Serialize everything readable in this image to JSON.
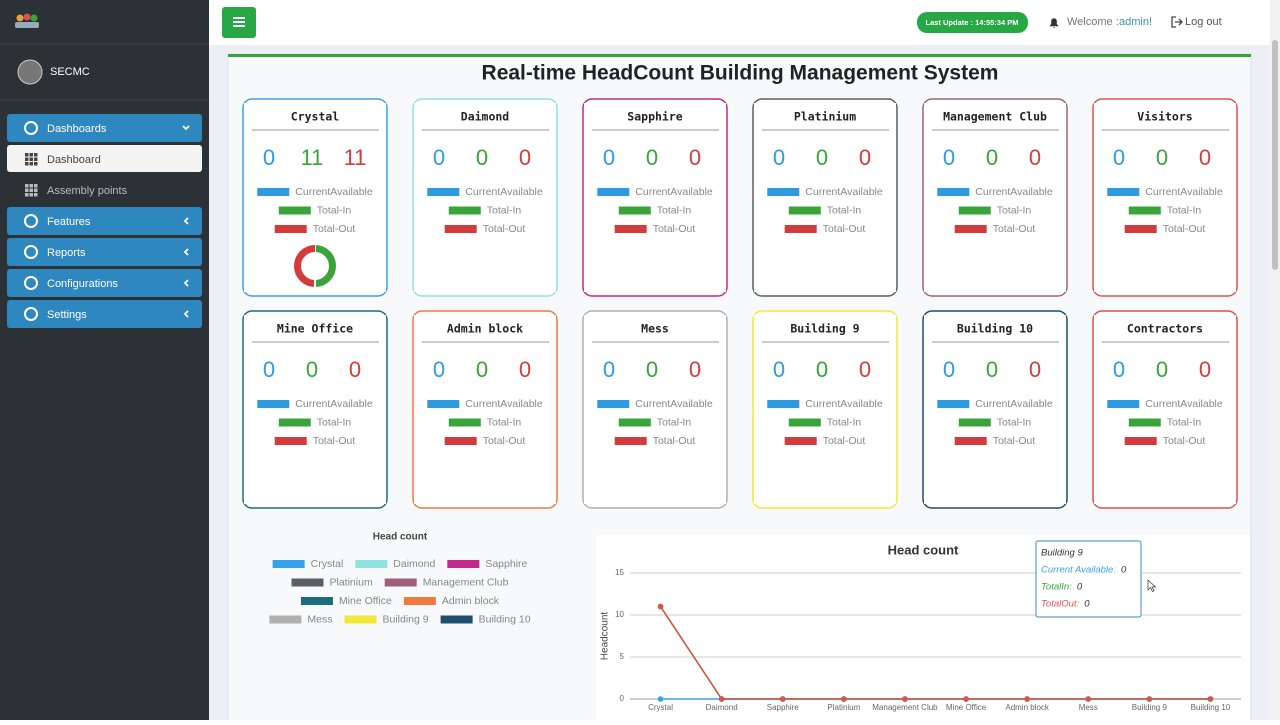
{
  "sidebar": {
    "user": "SECMC",
    "menu": [
      "Dashboards",
      "Dashboard",
      "Assembly points",
      "Features",
      "Reports",
      "Configurations",
      "Settings"
    ]
  },
  "topbar": {
    "last_update": "Last Update : 14:55:34 PM",
    "welcome": "Welcome :",
    "user": "admin!",
    "logout": "Log out"
  },
  "title": "Real-time HeadCount Building Management System",
  "legend_labels": [
    "CurrentAvailable",
    "Total-In",
    "Total-Out"
  ],
  "cards": [
    {
      "name": "Crystal",
      "color": "#36a2eb",
      "current": 0,
      "total_in": 11,
      "total_out": 11
    },
    {
      "name": "Daimond",
      "color": "#8ee3e0",
      "current": 0,
      "total_in": 0,
      "total_out": 0
    },
    {
      "name": "Sapphire",
      "color": "#c2298a",
      "current": 0,
      "total_in": 0,
      "total_out": 0
    },
    {
      "name": "Platinium",
      "color": "#5a5f63",
      "current": 0,
      "total_in": 0,
      "total_out": 0
    },
    {
      "name": "Management Club",
      "color": "#a0607c",
      "current": 0,
      "total_in": 0,
      "total_out": 0
    },
    {
      "name": "Visitors",
      "color": "#e05252",
      "current": 0,
      "total_in": 0,
      "total_out": 0
    },
    {
      "name": "Mine Office",
      "color": "#1b6e7a",
      "current": 0,
      "total_in": 0,
      "total_out": 0
    },
    {
      "name": "Admin block",
      "color": "#ef7a40",
      "current": 0,
      "total_in": 0,
      "total_out": 0
    },
    {
      "name": "Mess",
      "color": "#b0b0b0",
      "current": 0,
      "total_in": 0,
      "total_out": 0
    },
    {
      "name": "Building 9",
      "color": "#f1e93a",
      "current": 0,
      "total_in": 0,
      "total_out": 0
    },
    {
      "name": "Building 10",
      "color": "#1d4e6e",
      "current": 0,
      "total_in": 0,
      "total_out": 0
    },
    {
      "name": "Contractors",
      "color": "#d9534f",
      "current": 0,
      "total_in": 0,
      "total_out": 0
    }
  ],
  "number_colors": [
    "#2e9be0",
    "#3aa43a",
    "#d33c3c"
  ],
  "chart_data": [
    {
      "type": "pie",
      "title": "Head count",
      "categories": [
        "Crystal",
        "Daimond",
        "Sapphire",
        "Platinium",
        "Management Club",
        "Mine Office",
        "Admin block",
        "Mess",
        "Building 9",
        "Building 10"
      ],
      "colors": [
        "#36a2eb",
        "#8ee3e0",
        "#c2298a",
        "#5a5f63",
        "#a0607c",
        "#1b6e7a",
        "#ef7a40",
        "#b0b0b0",
        "#f1e93a",
        "#1d4e6e"
      ],
      "values": [
        0,
        0,
        0,
        0,
        0,
        0,
        0,
        0,
        0,
        0
      ]
    },
    {
      "type": "line",
      "title": "Head count",
      "y_label": "Headcount",
      "categories": [
        "Crystal",
        "Daimond",
        "Sapphire",
        "Platinium",
        "Management Club",
        "Mine Office",
        "Admin block",
        "Mess",
        "Building 9",
        "Building 10"
      ],
      "ylim": [
        0,
        15
      ],
      "yticks": [
        0,
        5,
        10,
        15
      ],
      "grid": true,
      "series": [
        {
          "name": "Current Available",
          "color": "#36a2eb",
          "values": [
            0,
            0,
            0,
            0,
            0,
            0,
            0,
            0,
            0,
            0
          ]
        },
        {
          "name": "TotalIn",
          "color": "#3aa43a",
          "values": [
            11,
            0,
            0,
            0,
            0,
            0,
            0,
            0,
            0,
            0
          ]
        },
        {
          "name": "TotalOut",
          "color": "#d9534f",
          "values": [
            11,
            0,
            0,
            0,
            0,
            0,
            0,
            0,
            0,
            0
          ]
        }
      ],
      "tooltip": {
        "title": "Building 9",
        "rows": [
          {
            "label": "Current Available:",
            "value": 0
          },
          {
            "label": "TotalIn:",
            "value": 0
          },
          {
            "label": "TotalOut:",
            "value": 0
          }
        ]
      }
    }
  ]
}
